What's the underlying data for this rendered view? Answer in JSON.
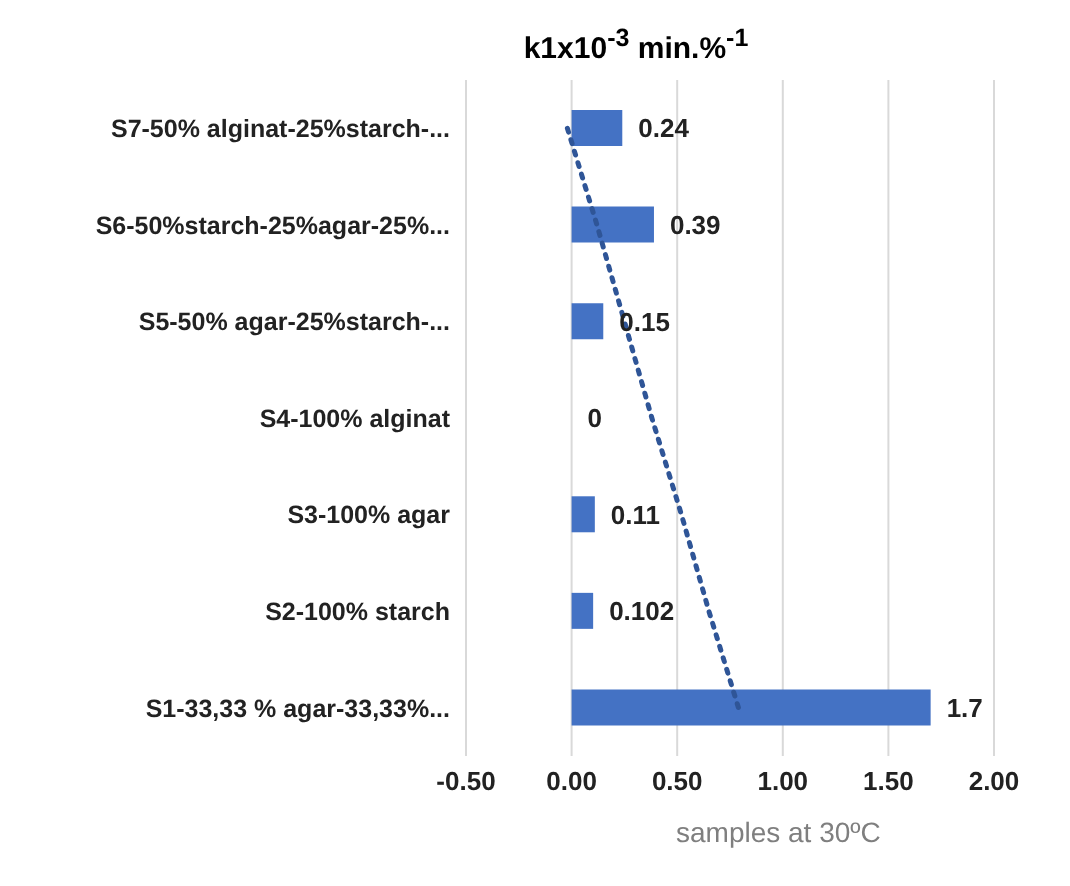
{
  "chart_data": {
    "type": "bar",
    "orientation": "horizontal",
    "title": "k1x10$^{-3}$ min.%$^{-1}$",
    "xlabel": "samples at 30ºC",
    "categories": [
      "S7-50% alginat-25%starch-...",
      "S6-50%starch-25%agar-25%...",
      "S5-50% agar-25%starch-...",
      "S4-100% alginat",
      "S3-100% agar",
      "S2-100% starch",
      "S1-33,33 % agar-33,33%..."
    ],
    "series": [
      {
        "color": "#4472c4",
        "values": [
          0.24,
          0.39,
          0.15,
          0,
          0.11,
          0.102,
          1.7
        ],
        "value_labels": [
          "0.24",
          "0.39",
          "0.15",
          "0",
          "0.11",
          "0.102",
          "1.7"
        ]
      },
      {
        "type": "line",
        "color": "#2f5597",
        "line_style": "dotted",
        "marker": "none",
        "values": [
          -0.02,
          0.12,
          0.25,
          0.38,
          0.52,
          0.65,
          0.79
        ]
      }
    ],
    "xlim": [
      -0.5,
      2.0
    ],
    "xticks": [
      {
        "value": -0.5,
        "label": "-0.50"
      },
      {
        "value": 0,
        "label": "0.00"
      },
      {
        "value": 0.5,
        "label": "0.50"
      },
      {
        "value": 1,
        "label": "1.00"
      },
      {
        "value": 1.5,
        "label": "1.50"
      },
      {
        "value": 2,
        "label": "2.00"
      }
    ],
    "grid": "x",
    "legend": false
  }
}
